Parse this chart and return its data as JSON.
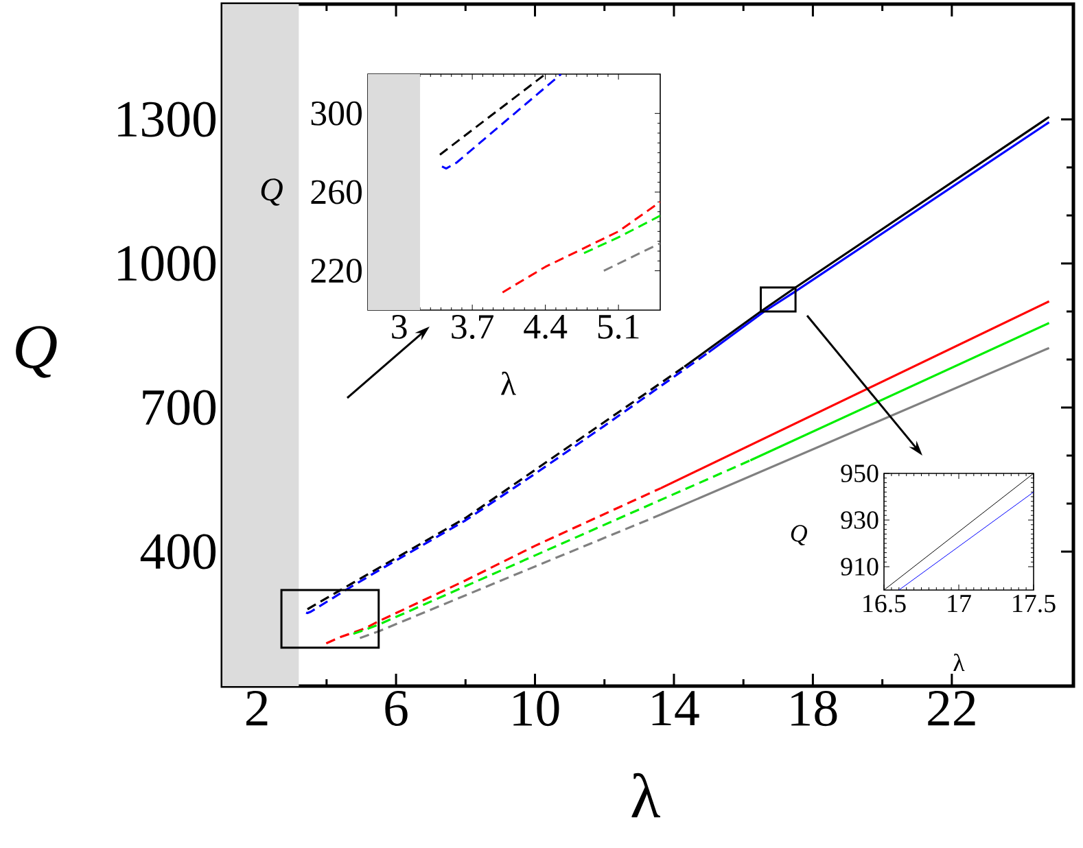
{
  "chart_data": [
    {
      "type": "line",
      "xlabel": "λ",
      "ylabel": "Q",
      "xlim": [
        1,
        25.5
      ],
      "ylim": [
        120,
        1540
      ],
      "xticks": [
        2,
        6,
        10,
        14,
        18,
        22
      ],
      "yticks": [
        400,
        700,
        1000,
        1300
      ],
      "bands": [
        {
          "axis": "x",
          "from": 1,
          "to": 3.2,
          "color": "#dcdcdc"
        }
      ],
      "series": [
        {
          "color": "#000000",
          "line_style": "dashed",
          "x": [
            3.45,
            4.4,
            5.6,
            8,
            10,
            12,
            14.3
          ],
          "values": [
            280,
            320,
            370,
            470,
            570,
            670,
            785
          ]
        },
        {
          "color": "#000000",
          "line_style": "solid",
          "x": [
            14.3,
            16.5,
            17.5,
            24.8
          ],
          "values": [
            785,
            900,
            950,
            1305
          ]
        },
        {
          "color": "#0000ff",
          "line_style": "dashed",
          "x": [
            3.41,
            3.45,
            3.55,
            4.55,
            5.6,
            8,
            10,
            12,
            15
          ],
          "values": [
            273,
            272,
            275,
            320,
            365,
            465,
            562,
            662,
            815
          ]
        },
        {
          "color": "#0000ff",
          "line_style": "solid",
          "x": [
            15,
            16.6,
            17.5,
            24.8
          ],
          "values": [
            815,
            900,
            942,
            1294
          ]
        },
        {
          "color": "#ff0000",
          "line_style": "dashed",
          "x": [
            3.99,
            4.4,
            5.1,
            5.5,
            8,
            10,
            13.62
          ],
          "values": [
            209,
            222,
            240,
            255,
            340,
            412,
            532
          ]
        },
        {
          "color": "#ff0000",
          "line_style": "solid",
          "x": [
            13.62,
            24.8
          ],
          "values": [
            532,
            921
          ]
        },
        {
          "color": "#00ee00",
          "line_style": "dashed",
          "x": [
            4.77,
            5.1,
            5.5,
            10,
            16.2
          ],
          "values": [
            229,
            237,
            248,
            392,
            590
          ]
        },
        {
          "color": "#00ee00",
          "line_style": "solid",
          "x": [
            16.2,
            24.8
          ],
          "values": [
            590,
            876
          ]
        },
        {
          "color": "#808080",
          "line_style": "dashed",
          "x": [
            4.96,
            5.5,
            10,
            13.62
          ],
          "values": [
            220,
            234,
            369,
            477
          ]
        },
        {
          "color": "#808080",
          "line_style": "solid",
          "x": [
            13.62,
            24.8
          ],
          "values": [
            477,
            824
          ]
        }
      ]
    },
    {
      "type": "line",
      "xlabel": "λ",
      "ylabel": "Q",
      "xlim": [
        2.7,
        5.5
      ],
      "ylim": [
        200,
        320
      ],
      "xticks": [
        3,
        3.7,
        4.4,
        5.1
      ],
      "yticks": [
        220,
        260,
        300
      ],
      "bands": [
        {
          "axis": "x",
          "from": 2.7,
          "to": 3.2,
          "color": "#dcdcdc"
        }
      ],
      "series": [
        {
          "color": "#000000",
          "line_style": "dashed",
          "x": [
            3.39,
            4.4
          ],
          "values": [
            279,
            320
          ]
        },
        {
          "color": "#0000ff",
          "line_style": "dashed",
          "x": [
            3.41,
            3.45,
            3.55,
            4.55
          ],
          "values": [
            273,
            272,
            275,
            320
          ]
        },
        {
          "color": "#ff0000",
          "line_style": "dashed",
          "x": [
            3.99,
            4.4,
            5.1,
            5.5
          ],
          "values": [
            209,
            222,
            240,
            255
          ]
        },
        {
          "color": "#00ee00",
          "line_style": "dashed",
          "x": [
            4.77,
            5.1,
            5.5
          ],
          "values": [
            229,
            237,
            248
          ]
        },
        {
          "color": "#808080",
          "line_style": "dashed",
          "x": [
            4.96,
            5.5
          ],
          "values": [
            220,
            234
          ]
        }
      ]
    },
    {
      "type": "line",
      "xlabel": "λ",
      "ylabel": "Q",
      "xlim": [
        16.5,
        17.5
      ],
      "ylim": [
        900,
        950
      ],
      "xticks": [
        16.5,
        17,
        17.5
      ],
      "yticks": [
        910,
        930,
        950
      ],
      "series": [
        {
          "color": "#000000",
          "line_style": "solid",
          "x": [
            16.5,
            17.5
          ],
          "values": [
            900,
            950
          ]
        },
        {
          "color": "#0000ff",
          "line_style": "solid",
          "x": [
            16.6,
            17.5
          ],
          "values": [
            900,
            942
          ]
        }
      ]
    }
  ]
}
